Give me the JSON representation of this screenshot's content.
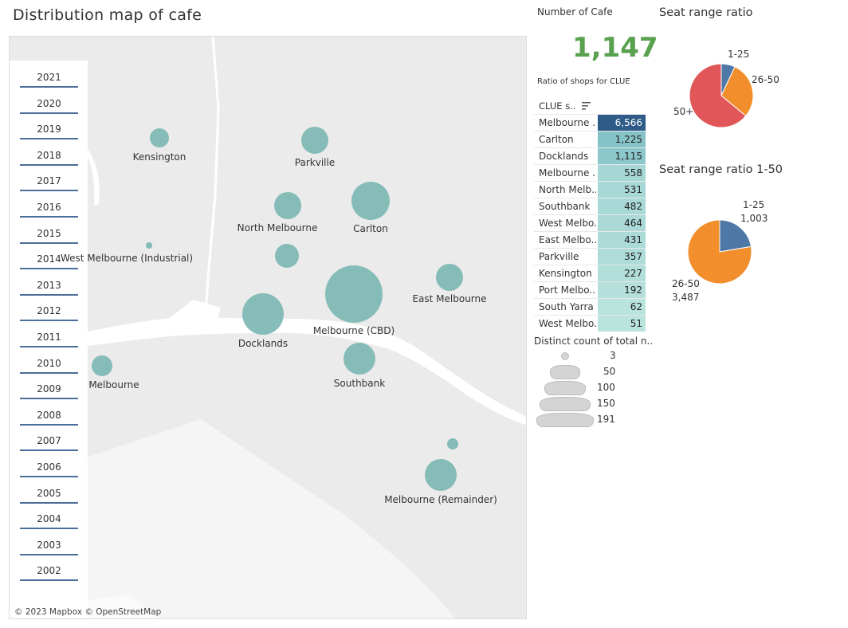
{
  "title": "Distribution map of cafe",
  "map": {
    "attribution": "© 2023 Mapbox © OpenStreetMap",
    "cities": [
      {
        "name": "Kensington",
        "label": "Kensington"
      },
      {
        "name": "Parkville",
        "label": "Parkville"
      },
      {
        "name": "North Melbourne",
        "label": "North Melbourne"
      },
      {
        "name": "Carlton",
        "label": "Carlton"
      },
      {
        "name": "West Melbourne (Industrial)",
        "label": "West Melbourne (Industrial)"
      },
      {
        "name": "West Melbourne (Residential)",
        "label": ""
      },
      {
        "name": "East Melbourne",
        "label": "East Melbourne"
      },
      {
        "name": "Melbourne (CBD)",
        "label": "Melbourne (CBD)"
      },
      {
        "name": "Docklands",
        "label": "Docklands"
      },
      {
        "name": "Port Melbourne",
        "label": "Melbourne"
      },
      {
        "name": "Southbank",
        "label": "Southbank"
      },
      {
        "name": "South Yarra",
        "label": ""
      },
      {
        "name": "Melbourne (Remainder)",
        "label": "Melbourne (Remainder)"
      }
    ]
  },
  "years": [
    "2021",
    "2020",
    "2019",
    "2018",
    "2017",
    "2016",
    "2015",
    "2014",
    "2013",
    "2012",
    "2011",
    "2010",
    "2009",
    "2008",
    "2007",
    "2006",
    "2005",
    "2004",
    "2003",
    "2002"
  ],
  "kpi": {
    "label": "Number of Cafe",
    "value": "1,147",
    "color": "#59a14f"
  },
  "ratio_label": "Ratio of shops for CLUE",
  "table": {
    "header": "CLUE s..",
    "rows": [
      {
        "name": "Melbourne ..",
        "value": "6,566",
        "color": "#2e5b88",
        "text": "#ffffff"
      },
      {
        "name": "Carlton",
        "value": "1,225",
        "color": "#86c3c8",
        "text": "#222222"
      },
      {
        "name": "Docklands",
        "value": "1,115",
        "color": "#8cc7cb",
        "text": "#222222"
      },
      {
        "name": "Melbourne ..",
        "value": "558",
        "color": "#a6d7d5",
        "text": "#222222"
      },
      {
        "name": "North Melb..",
        "value": "531",
        "color": "#a7d8d5",
        "text": "#222222"
      },
      {
        "name": "Southbank",
        "value": "482",
        "color": "#a9d9d6",
        "text": "#222222"
      },
      {
        "name": "West Melbo..",
        "value": "464",
        "color": "#aad9d6",
        "text": "#222222"
      },
      {
        "name": "East Melbo..",
        "value": "431",
        "color": "#abdad7",
        "text": "#222222"
      },
      {
        "name": "Parkville",
        "value": "357",
        "color": "#aedcd8",
        "text": "#222222"
      },
      {
        "name": "Kensington",
        "value": "227",
        "color": "#b3dfda",
        "text": "#222222"
      },
      {
        "name": "Port Melbo..",
        "value": "192",
        "color": "#b5e0db",
        "text": "#222222"
      },
      {
        "name": "South Yarra",
        "value": "62",
        "color": "#b9e3dd",
        "text": "#222222"
      },
      {
        "name": "West Melbo..",
        "value": "51",
        "color": "#bae3dd",
        "text": "#222222"
      }
    ]
  },
  "size_legend": {
    "title": "Distinct count of total n..",
    "items": [
      "3",
      "50",
      "100",
      "150",
      "191"
    ]
  },
  "pie1": {
    "title": "Seat range ratio",
    "labels": {
      "a": "1-25",
      "b": "26-50",
      "c": "50+"
    },
    "colors": [
      "#4e79a7",
      "#f28e2b",
      "#e15759"
    ]
  },
  "pie2": {
    "title": "Seat range ratio 1-50",
    "labels": {
      "a_name": "1-25",
      "a_value": "1,003",
      "b_name": "26-50",
      "b_value": "3,487"
    },
    "colors": [
      "#4e79a7",
      "#f28e2b"
    ]
  },
  "chart_data": [
    {
      "type": "pie",
      "title": "Seat range ratio",
      "categories": [
        "1-25",
        "26-50",
        "50+"
      ],
      "values": [
        7,
        29,
        64
      ]
    },
    {
      "type": "pie",
      "title": "Seat range ratio 1-50",
      "categories": [
        "1-25",
        "26-50"
      ],
      "values": [
        1003,
        3487
      ]
    }
  ]
}
